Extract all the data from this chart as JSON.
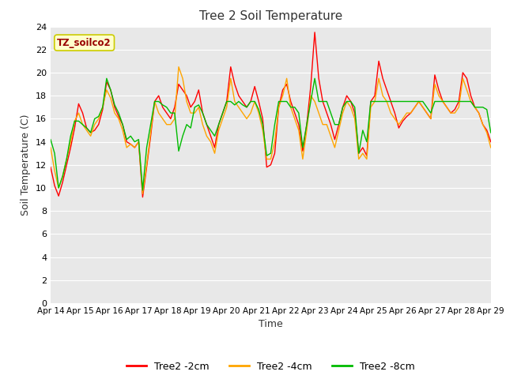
{
  "title": "Tree 2 Soil Temperature",
  "xlabel": "Time",
  "ylabel": "Soil Temperature (C)",
  "ylim": [
    0,
    24
  ],
  "yticks": [
    0,
    2,
    4,
    6,
    8,
    10,
    12,
    14,
    16,
    18,
    20,
    22,
    24
  ],
  "x_labels": [
    "Apr 14",
    "Apr 15",
    "Apr 16",
    "Apr 17",
    "Apr 18",
    "Apr 19",
    "Apr 20",
    "Apr 21",
    "Apr 22",
    "Apr 23",
    "Apr 24",
    "Apr 25",
    "Apr 26",
    "Apr 27",
    "Apr 28",
    "Apr 29"
  ],
  "annotation_text": "TZ_soilco2",
  "annotation_box_color": "#FFFFCC",
  "annotation_border_color": "#CCCC00",
  "annotation_text_color": "#990000",
  "background_color": "#E8E8E8",
  "line_colors": {
    "2cm": "#FF0000",
    "4cm": "#FFA500",
    "8cm": "#00BB00"
  },
  "legend_labels": [
    "Tree2 -2cm",
    "Tree2 -4cm",
    "Tree2 -8cm"
  ],
  "tree2_2cm": [
    11.8,
    10.2,
    9.3,
    10.5,
    12.0,
    13.5,
    15.2,
    17.3,
    16.5,
    15.2,
    14.8,
    15.0,
    15.5,
    16.8,
    19.2,
    18.5,
    17.0,
    16.2,
    15.5,
    14.0,
    13.8,
    13.5,
    14.0,
    9.2,
    11.8,
    14.5,
    17.5,
    18.0,
    17.0,
    16.5,
    16.0,
    17.0,
    19.0,
    18.5,
    18.0,
    17.0,
    17.5,
    18.5,
    16.5,
    15.5,
    14.5,
    13.5,
    15.5,
    16.5,
    17.5,
    20.5,
    19.0,
    18.0,
    17.5,
    17.0,
    17.5,
    18.8,
    17.5,
    16.0,
    11.8,
    12.0,
    13.0,
    17.0,
    18.5,
    19.0,
    17.5,
    16.5,
    15.5,
    13.2,
    15.5,
    18.8,
    23.5,
    19.5,
    17.5,
    16.5,
    15.5,
    14.2,
    15.5,
    17.0,
    18.0,
    17.5,
    16.5,
    13.0,
    13.5,
    12.8,
    17.5,
    18.0,
    21.0,
    19.5,
    18.5,
    17.5,
    16.5,
    15.2,
    15.8,
    16.2,
    16.5,
    17.0,
    17.5,
    17.0,
    16.5,
    16.0,
    19.8,
    18.5,
    17.5,
    17.0,
    16.5,
    16.8,
    17.5,
    20.0,
    19.5,
    18.0,
    17.0,
    16.5,
    15.5,
    15.0,
    14.0
  ],
  "tree2_4cm": [
    13.5,
    11.5,
    10.0,
    11.0,
    12.5,
    14.0,
    15.8,
    16.5,
    15.5,
    15.0,
    14.5,
    15.5,
    16.0,
    17.0,
    18.5,
    17.8,
    16.5,
    16.0,
    15.0,
    13.5,
    13.8,
    13.5,
    14.0,
    9.5,
    12.0,
    14.8,
    17.5,
    16.5,
    16.0,
    15.5,
    15.5,
    16.0,
    20.5,
    19.5,
    17.5,
    16.5,
    16.5,
    17.0,
    15.5,
    14.5,
    14.0,
    13.0,
    15.0,
    16.0,
    17.0,
    19.5,
    17.5,
    17.0,
    16.5,
    16.0,
    16.5,
    17.5,
    16.5,
    15.0,
    12.5,
    12.5,
    14.0,
    17.0,
    18.0,
    19.5,
    17.0,
    16.0,
    15.0,
    12.5,
    15.0,
    18.0,
    17.5,
    16.5,
    15.5,
    15.5,
    14.5,
    13.5,
    15.0,
    16.5,
    17.5,
    17.0,
    16.0,
    12.5,
    13.0,
    12.5,
    17.0,
    17.5,
    19.5,
    18.0,
    17.5,
    16.5,
    16.0,
    15.5,
    16.0,
    16.5,
    16.5,
    17.0,
    17.5,
    17.0,
    16.5,
    16.0,
    19.0,
    18.0,
    17.5,
    17.0,
    16.5,
    16.5,
    17.0,
    19.5,
    18.5,
    17.5,
    17.0,
    16.5,
    15.5,
    14.8,
    13.5
  ],
  "tree2_8cm": [
    14.2,
    13.0,
    10.0,
    11.0,
    12.5,
    14.5,
    15.8,
    15.8,
    15.5,
    15.2,
    14.8,
    16.0,
    16.2,
    17.0,
    19.5,
    18.5,
    17.2,
    16.5,
    15.5,
    14.2,
    14.5,
    14.0,
    14.2,
    9.8,
    13.5,
    15.5,
    17.5,
    17.5,
    17.2,
    17.0,
    16.5,
    16.5,
    13.2,
    14.5,
    15.5,
    15.2,
    17.0,
    17.2,
    16.5,
    15.5,
    15.0,
    14.5,
    15.5,
    16.5,
    17.5,
    17.5,
    17.2,
    17.5,
    17.2,
    17.0,
    17.5,
    17.5,
    16.8,
    15.5,
    12.8,
    13.0,
    15.5,
    17.5,
    17.5,
    17.5,
    17.0,
    17.0,
    16.5,
    13.5,
    15.5,
    17.5,
    19.5,
    17.5,
    17.5,
    17.5,
    16.5,
    15.5,
    15.5,
    17.0,
    17.5,
    17.5,
    17.0,
    13.0,
    15.0,
    14.0,
    17.5,
    17.5,
    17.5,
    17.5,
    17.5,
    17.5,
    17.5,
    17.5,
    17.5,
    17.5,
    17.5,
    17.5,
    17.5,
    17.5,
    17.0,
    16.5,
    17.5,
    17.5,
    17.5,
    17.5,
    17.5,
    17.5,
    17.5,
    17.5,
    17.5,
    17.5,
    17.0,
    17.0,
    17.0,
    16.8,
    14.8
  ]
}
